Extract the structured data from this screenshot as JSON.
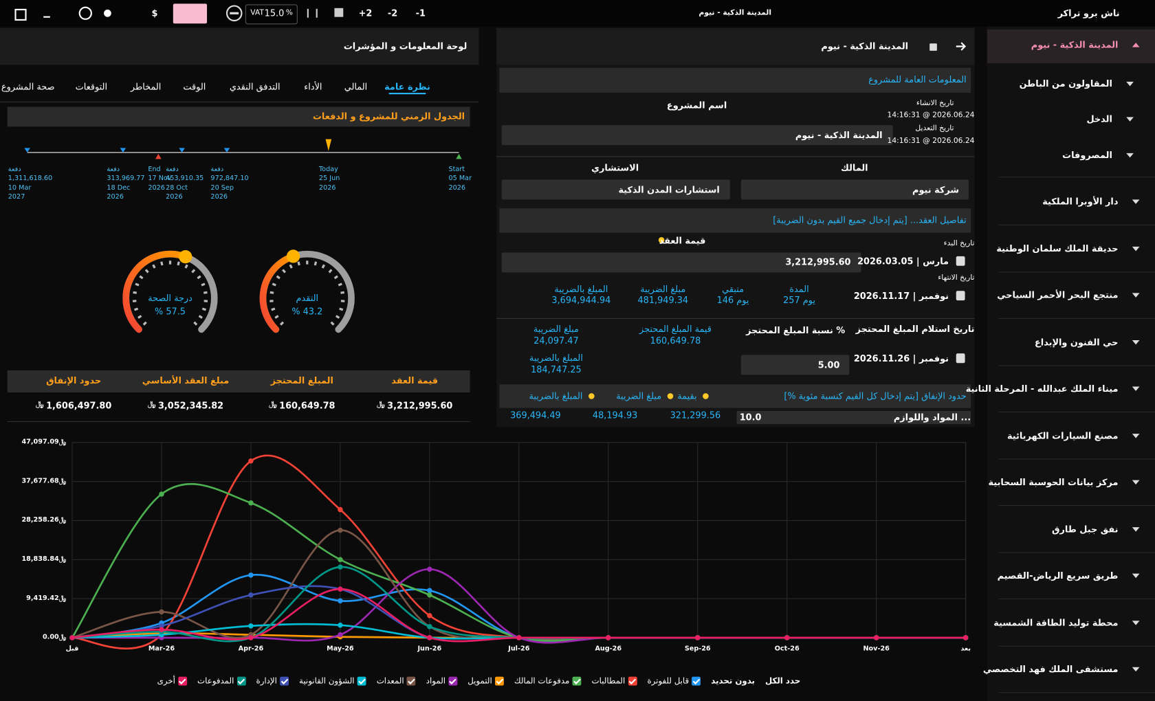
{
  "topbar": {
    "app_name": "ناش برو تراكر",
    "project": "المدينة الذكية - نيوم",
    "buttons": [
      "-1",
      "-2",
      "+2"
    ],
    "vat_label": "VAT",
    "vat_value": "15.0",
    "vat_unit": "%",
    "currency": "$"
  },
  "currency_symbol": "﷼",
  "sidebar": {
    "active": "المدينة الذكية - نيوم",
    "sub_items": [
      "المقاولون من الباطن",
      "الدخل",
      "المصروفات"
    ],
    "projects": [
      "دار الأوبرا الملكية",
      "حديقة الملك سلمان الوطنية",
      "منتجع البحر الأحمر السياحي",
      "حي الفنون والإبداع",
      "ميناء الملك عبدالله - المرحلة الثانية",
      "مصنع السيارات الكهربائية",
      "مركز بيانات الحوسبة السحابية",
      "نفق جبل طارق",
      "طريق سريع الرياض-القصيم",
      "محطة توليد الطاقة الشمسية",
      "مستشفى الملك فهد التخصصي"
    ]
  },
  "project_panel": {
    "title": "المدينة الذكية - نيوم",
    "general_section": "المعلومات العامة للمشروع",
    "created_label": "تاريخ الانشاء",
    "created": "14:16:31 @ 2026.06.24",
    "modified_label": "تاريخ التعديل",
    "modified": "14:16:31 @ 2026.06.24",
    "project_name_label": "اسم المشروع",
    "project_name": "المدينة الذكية - نيوم",
    "owner_label": "المالك",
    "owner": "شركة نيوم",
    "consultant_label": "الاستشاري",
    "consultant": "استشارات المدن الذكية",
    "contract_section": "تفاصيل العقد...    [يتم إدخال جميع القيم بدون الضريبة]",
    "start_label": "تاريخ البدء",
    "start": "2026.03.05 | مارس",
    "contract_value_label": "قيمة العقد",
    "contract_value": "3,212,995.60",
    "end_label": "تاريخ الانتهاء",
    "end": "2026.11.17 | نوفمبر",
    "stats": [
      {
        "label": "المدة",
        "value": "257 يوم"
      },
      {
        "label": "متبقي",
        "value": "146 يوم"
      },
      {
        "label": "مبلغ الضريبة",
        "value": "481,949.34"
      },
      {
        "label": "المبلغ بالضريبة",
        "value": "3,694,944.94"
      }
    ],
    "retention_date_label": "تاريخ استلام المبلغ المحتجز",
    "retention_date": "2026.11.26 | نوفمبر",
    "retention_pct_label": "نسبة المبلغ المحتجز %",
    "retention_pct": "5.00",
    "retention_value_label": "قيمة المبلغ المحتجز",
    "retention_value": "160,649.78",
    "retention_tax_label": "مبلغ الضريبة",
    "retention_tax": "24,097.47",
    "retention_total_label": "المبلغ بالضريبة",
    "retention_total": "184,747.25",
    "spending_section": "حدود الإنفاق [يتم إدخال كل القيم كنسبة مئوية %]",
    "spending_columns": [
      "بقيمة",
      "مبلغ الضريبة",
      "المبلغ بالضريبة"
    ],
    "spending_row": {
      "name": "المواد واللوازم ...",
      "pct": "10.0",
      "values": [
        "321,299.56",
        "48,194.93",
        "369,494.49"
      ]
    }
  },
  "dashboard": {
    "title": "لوحة المعلومات و المؤشرات",
    "tabs": [
      "نظرة عامة",
      "المالي",
      "الأداء",
      "التدفق النقدي",
      "الوقت",
      "المخاطر",
      "التوقعات",
      "صحة المشروع"
    ],
    "timeline_title": "الجدول الزمني للمشروع و الدفعات",
    "timeline": [
      {
        "kind": "دفعة",
        "amount": "1,311,618.60",
        "date": "10 Mar",
        "year": "2027"
      },
      {
        "kind": "دفعة",
        "amount": "313,969.77",
        "date": "18 Dec",
        "year": "2026"
      },
      {
        "kind": "End",
        "date": "17 Nov",
        "year": "2026"
      },
      {
        "kind": "دفعة",
        "amount": "453,910.35",
        "date": "28 Oct",
        "year": "2026"
      },
      {
        "kind": "دفعة",
        "amount": "972,847.10",
        "date": "20 Sep",
        "year": "2026"
      },
      {
        "kind": "Today",
        "date": "25 Jun",
        "year": "2026"
      },
      {
        "kind": "Start",
        "date": "05 Mar",
        "year": "2026"
      }
    ],
    "gauges": [
      {
        "label": "درجة الصحة",
        "value": 57.5,
        "value_label": "% 57.5"
      },
      {
        "label": "التقدم",
        "value": 43.2,
        "value_label": "% 43.2"
      }
    ],
    "summary_headers": [
      "قيمة العقد",
      "المبلغ المحتجز",
      "مبلغ العقد الأساسي",
      "حدود الإنفاق"
    ],
    "summary_values": [
      "3,212,995.60",
      "160,649.78",
      "3,052,345.82",
      "1,606,497.80"
    ]
  },
  "chart_controls": {
    "select_all": "حدد الكل",
    "select_none": "بدون تحديد"
  },
  "chart_data": {
    "type": "line",
    "grid": true,
    "categories": [
      "قبل",
      "Mar-26",
      "Apr-26",
      "May-26",
      "Jun-26",
      "Jul-26",
      "Aug-26",
      "Sep-26",
      "Oct-26",
      "Nov-26",
      "بعد"
    ],
    "ylim": [
      0,
      47097.09
    ],
    "yticks": [
      {
        "value": 0,
        "label": "﷼0.00"
      },
      {
        "value": 9419.42,
        "label": "﷼9,419.42"
      },
      {
        "value": 18838.84,
        "label": "﷼18,838.84"
      },
      {
        "value": 28258.26,
        "label": "﷼28,258.26"
      },
      {
        "value": 37677.68,
        "label": "﷼37,677.68"
      },
      {
        "value": 47097.09,
        "label": "﷼47,097.09"
      }
    ],
    "series": [
      {
        "name": "قابل للفوترة",
        "color": "#2196f3",
        "values": [
          0,
          3550,
          15100,
          8890,
          11370,
          0,
          0,
          0,
          0,
          0,
          0
        ]
      },
      {
        "name": "المطالبات",
        "color": "#f44336",
        "values": [
          0,
          700,
          42650,
          30920,
          5330,
          0,
          0,
          0,
          0,
          0,
          0
        ]
      },
      {
        "name": "مدفوعات المالك",
        "color": "#4caf50",
        "values": [
          0,
          34650,
          32520,
          18840,
          10300,
          0,
          0,
          0,
          0,
          0,
          0
        ]
      },
      {
        "name": "التمويل",
        "color": "#ff9800",
        "values": [
          0,
          1070,
          700,
          200,
          0,
          0,
          0,
          0,
          0,
          0,
          0
        ]
      },
      {
        "name": "المواد",
        "color": "#9c27b0",
        "values": [
          0,
          0,
          0,
          700,
          16530,
          0,
          0,
          0,
          0,
          0,
          0
        ]
      },
      {
        "name": "المعدات",
        "color": "#795548",
        "values": [
          0,
          6220,
          700,
          25940,
          2670,
          0,
          0,
          0,
          0,
          0,
          0
        ]
      },
      {
        "name": "الشؤون القانونية",
        "color": "#00bcd4",
        "values": [
          0,
          700,
          2840,
          3020,
          0,
          0,
          0,
          0,
          0,
          0,
          0
        ]
      },
      {
        "name": "الإدارة",
        "color": "#3f51b5",
        "values": [
          0,
          2840,
          10300,
          11730,
          0,
          0,
          0,
          0,
          0,
          0,
          0
        ]
      },
      {
        "name": "المدفوعات",
        "color": "#009688",
        "values": [
          0,
          1420,
          0,
          17060,
          2670,
          0,
          0,
          0,
          0,
          0,
          0
        ]
      },
      {
        "name": "أخرى",
        "color": "#e91e63",
        "values": [
          0,
          1950,
          0,
          11730,
          0,
          0,
          0,
          0,
          0,
          0,
          0
        ]
      }
    ]
  }
}
